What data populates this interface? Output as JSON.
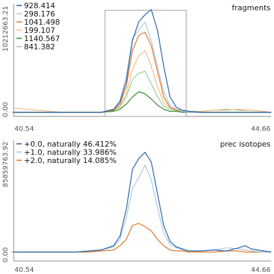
{
  "chart_data": [
    {
      "type": "line",
      "title": "fragments",
      "xlabel": "",
      "ylabel": "",
      "xlim": [
        40.54,
        44.66
      ],
      "ylim": [
        0,
        10212663.21
      ],
      "x_ticks": [
        "40.54",
        "44.66"
      ],
      "y_ticks": [
        "0.00",
        "10212663.21"
      ],
      "legend_position": "top-left",
      "highlight_box": {
        "x_range": [
          42.0,
          43.3
        ],
        "label": ""
      },
      "x": [
        40.54,
        40.74,
        40.94,
        41.14,
        41.34,
        41.54,
        41.74,
        41.94,
        42.14,
        42.24,
        42.34,
        42.44,
        42.54,
        42.64,
        42.74,
        42.84,
        42.94,
        43.04,
        43.14,
        43.24,
        43.34,
        43.54,
        43.74,
        43.94,
        44.14,
        44.34,
        44.54,
        44.66
      ],
      "series": [
        {
          "name": "928.414",
          "color": "#1f5fa8",
          "values": [
            0,
            0,
            0,
            0,
            0,
            0,
            0,
            0,
            0.03,
            0.1,
            0.3,
            0.7,
            0.88,
            0.95,
            1.0,
            0.8,
            0.45,
            0.15,
            0.05,
            0.02,
            0.01,
            0,
            0,
            0,
            0,
            0,
            0,
            0
          ]
        },
        {
          "name": "298.176",
          "color": "#a9c7e6",
          "values": [
            0,
            0,
            0,
            0,
            0,
            0,
            0,
            0,
            0.03,
            0.12,
            0.35,
            0.72,
            0.8,
            0.88,
            0.7,
            0.45,
            0.2,
            0.07,
            0.03,
            0.01,
            0,
            0,
            0,
            0,
            0,
            0,
            0,
            0
          ]
        },
        {
          "name": "1041.498",
          "color": "#e0731c",
          "values": [
            0,
            0,
            0,
            0,
            0,
            0,
            0,
            0,
            0.02,
            0.08,
            0.25,
            0.6,
            0.75,
            0.78,
            0.65,
            0.4,
            0.15,
            0.05,
            0.02,
            0.01,
            0,
            0,
            0,
            0,
            0,
            0,
            0,
            0
          ]
        },
        {
          "name": "199.107",
          "color": "#f5b987",
          "values": [
            0.04,
            0.03,
            0.02,
            0.01,
            0,
            0,
            0,
            0,
            0.02,
            0.06,
            0.18,
            0.42,
            0.55,
            0.6,
            0.45,
            0.25,
            0.1,
            0.04,
            0.03,
            0.02,
            0.01,
            0.01,
            0.02,
            0.02,
            0.03,
            0.02,
            0.01,
            0
          ]
        },
        {
          "name": "1140.567",
          "color": "#2a8a2a",
          "values": [
            0,
            0,
            0,
            0,
            0,
            0,
            0,
            0,
            0.01,
            0.03,
            0.08,
            0.15,
            0.2,
            0.18,
            0.13,
            0.07,
            0.03,
            0.01,
            0.01,
            0,
            0,
            0,
            0,
            0,
            0,
            0,
            0,
            0
          ]
        },
        {
          "name": "841.382",
          "color": "#8fd18a",
          "values": [
            0,
            0,
            0,
            0,
            0,
            0,
            0,
            0,
            0.02,
            0.05,
            0.15,
            0.32,
            0.38,
            0.4,
            0.28,
            0.15,
            0.06,
            0.03,
            0.02,
            0.02,
            0.01,
            0.01,
            0.02,
            0.03,
            0.02,
            0.02,
            0.01,
            0
          ]
        }
      ]
    },
    {
      "type": "line",
      "title": "prec isotopes",
      "xlabel": "",
      "ylabel": "",
      "xlim": [
        40.54,
        44.66
      ],
      "ylim": [
        0,
        85859763.92
      ],
      "x_ticks": [
        "40.54",
        "44.66"
      ],
      "y_ticks": [
        "0.00",
        "85859763.92"
      ],
      "legend_position": "top-left",
      "x": [
        40.54,
        40.74,
        40.94,
        41.14,
        41.34,
        41.54,
        41.74,
        41.94,
        42.14,
        42.24,
        42.34,
        42.44,
        42.54,
        42.64,
        42.74,
        42.84,
        42.94,
        43.04,
        43.14,
        43.24,
        43.34,
        43.54,
        43.74,
        43.94,
        44.14,
        44.24,
        44.34,
        44.54,
        44.66
      ],
      "series": [
        {
          "name": "+0.0, naturally 46.412%",
          "color": "#1f5fa8",
          "values": [
            0,
            0,
            0,
            0,
            0,
            0,
            0.01,
            0.02,
            0.06,
            0.15,
            0.4,
            0.78,
            0.88,
            0.94,
            0.85,
            0.55,
            0.25,
            0.1,
            0.05,
            0.03,
            0.01,
            0.01,
            0.02,
            0.01,
            0.04,
            0.06,
            0.03,
            0.01,
            0
          ]
        },
        {
          "name": "+1.0, naturally 33.986%",
          "color": "#a9c7e6",
          "values": [
            0,
            0,
            0,
            0,
            0,
            0,
            0.01,
            0.02,
            0.05,
            0.12,
            0.32,
            0.6,
            0.7,
            0.82,
            0.68,
            0.42,
            0.18,
            0.07,
            0.04,
            0.02,
            0.01,
            0.01,
            0.02,
            0.04,
            0.03,
            0.02,
            0.01,
            0,
            0
          ]
        },
        {
          "name": "+2.0, naturally 14.085%",
          "color": "#e0731c",
          "values": [
            0,
            0,
            0,
            0,
            0,
            0,
            0,
            0.01,
            0.02,
            0.06,
            0.12,
            0.25,
            0.27,
            0.24,
            0.2,
            0.12,
            0.06,
            0.02,
            0.01,
            0.01,
            0,
            0,
            0,
            0.01,
            0.01,
            0,
            0,
            0,
            0
          ]
        }
      ]
    }
  ]
}
